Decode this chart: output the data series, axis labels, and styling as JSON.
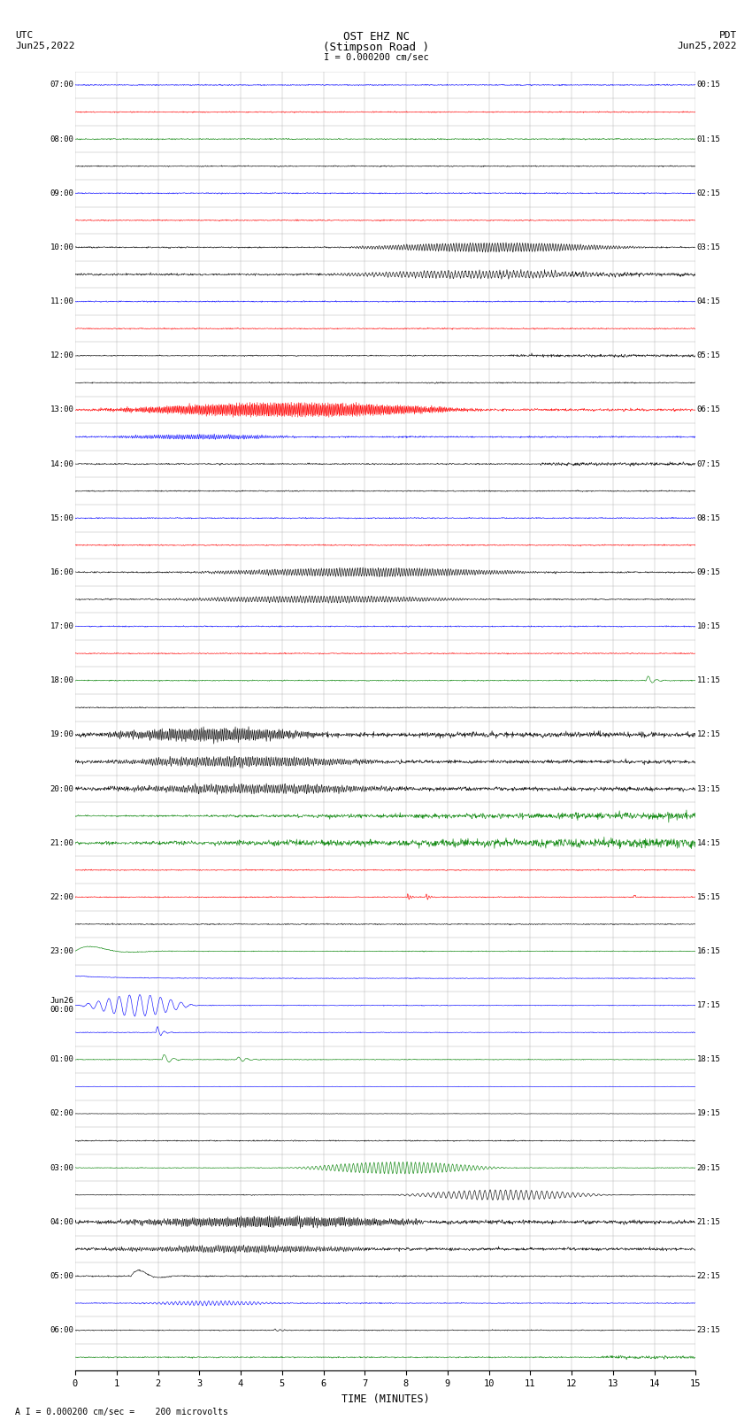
{
  "title_line1": "OST EHZ NC",
  "title_line2": "(Stimpson Road )",
  "scale_label": "I = 0.000200 cm/sec",
  "left_header_line1": "UTC",
  "left_header_line2": "Jun25,2022",
  "right_header_line1": "PDT",
  "right_header_line2": "Jun25,2022",
  "bottom_annotation": "A I = 0.000200 cm/sec =    200 microvolts",
  "xlabel": "TIME (MINUTES)",
  "bg_color": "#ffffff",
  "line_colors": [
    "#0000ff",
    "#ff0000",
    "#008000",
    "#000000"
  ],
  "num_rows": 48,
  "xmin": 0,
  "xmax": 15,
  "figwidth": 8.5,
  "figheight": 16.13,
  "utc_labels": [
    "07:00",
    "08:00",
    "09:00",
    "10:00",
    "11:00",
    "12:00",
    "13:00",
    "14:00",
    "15:00",
    "16:00",
    "17:00",
    "18:00",
    "19:00",
    "20:00",
    "21:00",
    "22:00",
    "23:00",
    "Jun26\n00:00",
    "01:00",
    "02:00",
    "03:00",
    "04:00",
    "05:00",
    "06:00"
  ],
  "pdt_labels": [
    "00:15",
    "01:15",
    "02:15",
    "03:15",
    "04:15",
    "05:15",
    "06:15",
    "07:15",
    "08:15",
    "09:15",
    "10:15",
    "11:15",
    "12:15",
    "13:15",
    "14:15",
    "15:15",
    "16:15",
    "17:15",
    "18:15",
    "19:15",
    "20:15",
    "21:15",
    "22:15",
    "23:15"
  ]
}
